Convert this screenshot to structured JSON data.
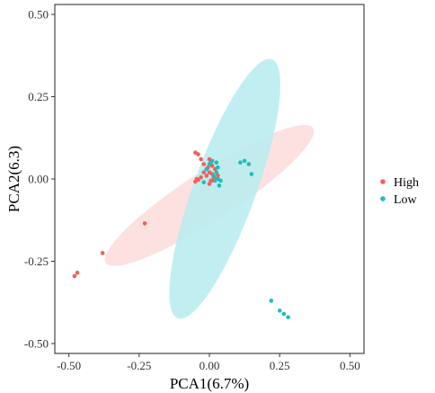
{
  "chart_data": {
    "type": "scatter",
    "title": "",
    "xlabel": "PCA1(6.7%)",
    "ylabel": "PCA2(6.3)",
    "xlim": [
      -0.55,
      0.55
    ],
    "ylim": [
      -0.53,
      0.53
    ],
    "x_ticks": [
      -0.5,
      -0.25,
      0.0,
      0.25,
      0.5
    ],
    "x_tick_labels": [
      "-0.50",
      "-0.25",
      "0.00",
      "0.25",
      "0.50"
    ],
    "y_ticks": [
      0.5,
      0.25,
      0.0,
      -0.25,
      -0.5
    ],
    "y_tick_labels": [
      "0.50",
      "0.25",
      "0.00",
      "-0.25",
      "-0.50"
    ],
    "grid": false,
    "legend_position": "right",
    "series": [
      {
        "name": "High",
        "color": "#F0605A",
        "ellipse_color": "#FBDCDA",
        "ellipse": {
          "cx": 0.0,
          "cy": -0.05,
          "rx": 0.44,
          "ry": 0.075,
          "angle_deg": 33
        },
        "points": [
          [
            -0.48,
            -0.295
          ],
          [
            -0.47,
            -0.285
          ],
          [
            -0.38,
            -0.225
          ],
          [
            -0.23,
            -0.135
          ],
          [
            -0.05,
            0.08
          ],
          [
            -0.04,
            0.075
          ],
          [
            -0.03,
            0.06
          ],
          [
            -0.02,
            0.045
          ],
          [
            -0.01,
            0.03
          ],
          [
            0.0,
            0.06
          ],
          [
            0.005,
            0.05
          ],
          [
            0.01,
            0.04
          ],
          [
            0.0,
            0.02
          ],
          [
            0.01,
            0.015
          ],
          [
            0.015,
            0.005
          ],
          [
            0.005,
            -0.005
          ],
          [
            0.02,
            0.0
          ],
          [
            -0.01,
            0.01
          ],
          [
            -0.02,
            0.02
          ],
          [
            -0.03,
            0.005
          ],
          [
            -0.04,
            -0.003
          ],
          [
            -0.05,
            -0.008
          ],
          [
            -0.045,
            0.0
          ],
          [
            0.0,
            -0.015
          ],
          [
            0.01,
            -0.005
          ],
          [
            0.02,
            0.03
          ],
          [
            0.03,
            0.01
          ],
          [
            -0.005,
            0.035
          ]
        ]
      },
      {
        "name": "Low",
        "color": "#1CBDBF",
        "ellipse_color": "#B6ECEE",
        "ellipse": {
          "cx": 0.055,
          "cy": -0.03,
          "rx": 0.49,
          "ry": 0.095,
          "angle_deg": 70
        },
        "points": [
          [
            0.01,
            0.055
          ],
          [
            0.025,
            0.05
          ],
          [
            0.03,
            0.035
          ],
          [
            0.11,
            0.05
          ],
          [
            0.125,
            0.055
          ],
          [
            0.14,
            0.045
          ],
          [
            0.15,
            0.015
          ],
          [
            0.03,
            0.0
          ],
          [
            0.02,
            -0.005
          ],
          [
            0.015,
            0.01
          ],
          [
            0.025,
            0.02
          ],
          [
            0.0,
            0.045
          ],
          [
            -0.01,
            0.03
          ],
          [
            0.04,
            -0.005
          ],
          [
            0.035,
            -0.02
          ],
          [
            -0.02,
            -0.01
          ],
          [
            0.22,
            -0.37
          ],
          [
            0.25,
            -0.4
          ],
          [
            0.265,
            -0.41
          ],
          [
            0.28,
            -0.42
          ]
        ]
      }
    ]
  }
}
